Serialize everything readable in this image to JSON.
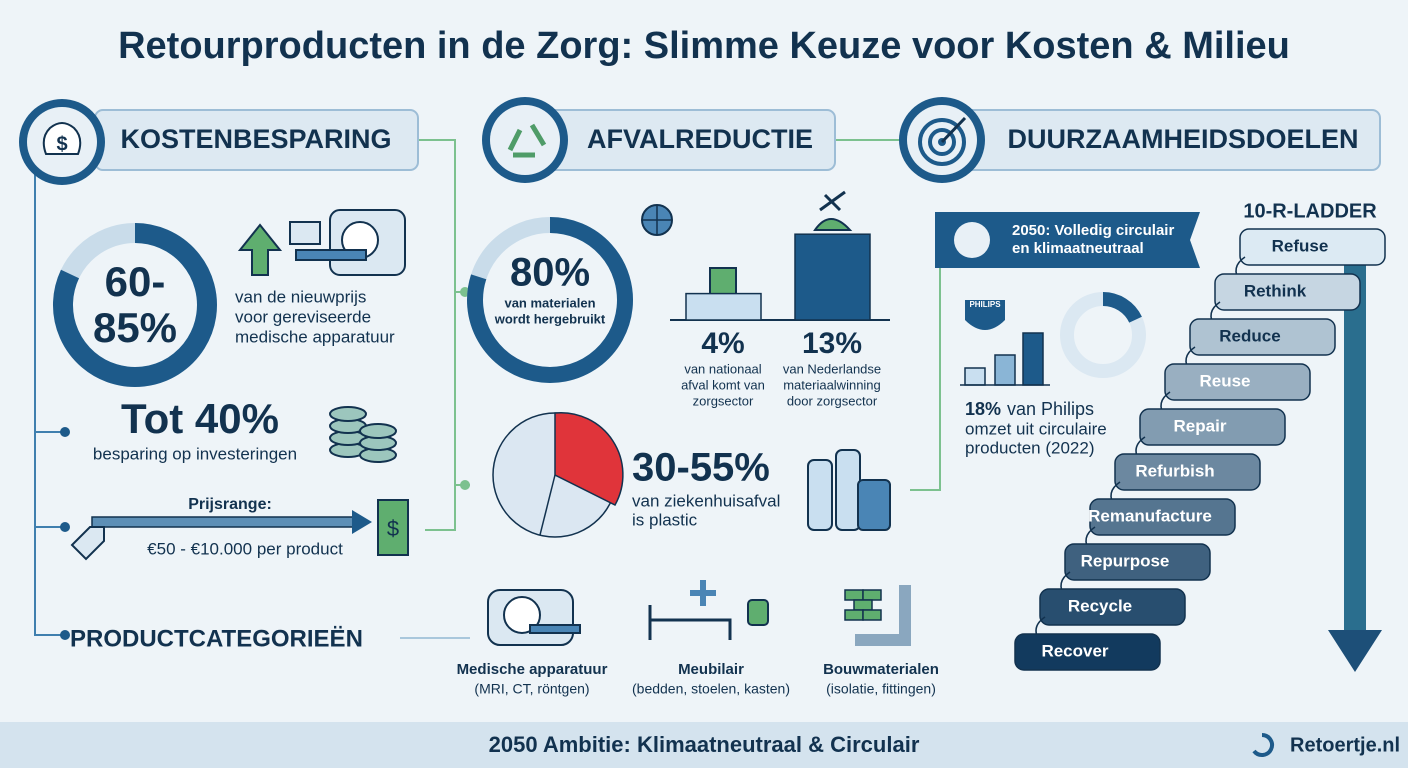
{
  "title": "Retourproducten in de Zorg: Slimme Keuze voor Kosten & Milieu",
  "kosten": {
    "heading": "KOSTENBESPARING",
    "range": "60-85%",
    "range_desc": [
      "van de nieuwprijs",
      "voor gereviseerde",
      "medische apparatuur"
    ],
    "saving": "Tot 40%",
    "saving_desc": "besparing op investeringen",
    "price_label": "Prijsrange:",
    "price_range": "€50 - €10.000 per product"
  },
  "afval": {
    "heading": "AFVALREDUCTIE",
    "reuse": {
      "value": 80,
      "label": "80%",
      "desc": [
        "van materialen",
        "wordt hergebruikt"
      ]
    },
    "bars": [
      {
        "value": 4,
        "label": "4%",
        "desc": [
          "van nationaal",
          "afval komt van",
          "zorgsector"
        ]
      },
      {
        "value": 13,
        "label": "13%",
        "desc": [
          "van Nederlandse",
          "materiaalwinning",
          "door zorgsector"
        ]
      }
    ],
    "plastic": "30-55%",
    "plastic_desc": [
      "van ziekenhuisafval",
      "is plastic"
    ]
  },
  "categories": {
    "heading": "PRODUCTCATEGORIEËN",
    "items": [
      {
        "name": "Medische apparatuur",
        "detail": "(MRI, CT, röntgen)"
      },
      {
        "name": "Meubilair",
        "detail": "(bedden, stoelen, kasten)"
      },
      {
        "name": "Bouwmaterialen",
        "detail": "(isolatie, fittingen)"
      }
    ]
  },
  "duurzaam": {
    "heading": "DUURZAAMHEIDSDOELEN",
    "banner": [
      "2050: Volledig circulair",
      "en klimaatneutraal"
    ],
    "philips_logo": "PHILIPS",
    "philips": {
      "value": 18,
      "label": "18%",
      "desc": [
        "van Philips",
        "omzet uit circulaire",
        "producten (2022)"
      ]
    },
    "ladder_title": "10-R-LADDER",
    "ladder": [
      "Refuse",
      "Rethink",
      "Reduce",
      "Reuse",
      "Repair",
      "Refurbish",
      "Remanufacture",
      "Repurpose",
      "Recycle",
      "Recover"
    ]
  },
  "footer": {
    "ambition": "2050 Ambitie: Klimaatneutraal & Circulair",
    "brand": "Retoertje.nl"
  }
}
